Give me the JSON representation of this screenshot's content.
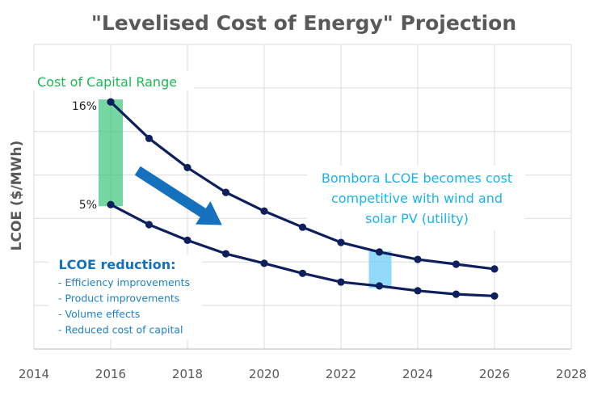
{
  "chart_data": {
    "type": "line",
    "title": "\"Levelised Cost of Energy\" Projection",
    "xlabel": "",
    "ylabel": "LCOE ($/MWh)",
    "xlim": [
      2014,
      2028
    ],
    "xticks": [
      2014,
      2016,
      2018,
      2020,
      2022,
      2024,
      2026,
      2028
    ],
    "ylim": [
      0,
      7
    ],
    "yticks_visible": false,
    "y_units_note": "relative scale (no y tick labels shown)",
    "grid": true,
    "legend": "none",
    "x": [
      2016,
      2017,
      2018,
      2019,
      2020,
      2021,
      2022,
      2023,
      2024,
      2025,
      2026
    ],
    "series": [
      {
        "name": "16% cost of capital",
        "color": "#0d1f5c",
        "values": [
          5.68,
          4.84,
          4.17,
          3.6,
          3.17,
          2.8,
          2.45,
          2.23,
          2.06,
          1.95,
          1.84
        ]
      },
      {
        "name": "5% cost of capital",
        "color": "#0d1f5c",
        "values": [
          3.32,
          2.86,
          2.5,
          2.19,
          1.97,
          1.74,
          1.54,
          1.45,
          1.34,
          1.26,
          1.22
        ]
      }
    ],
    "annotations": {
      "capital_range": {
        "label": "Cost of Capital Range",
        "x": 2016,
        "y_from": 3.32,
        "y_to": 5.68,
        "color": "#3cc47a"
      },
      "high_label": "16%",
      "low_label": "5%",
      "competitive_band": {
        "x": 2023,
        "y_from": 1.4,
        "y_to": 2.25,
        "color": "#6dcdf5",
        "lines": [
          "Bombora LCOE becomes cost",
          "competitive with wind and",
          "solar PV (utility)"
        ]
      },
      "reduction_arrow": {
        "from": [
          2016.7,
          4.1
        ],
        "to": [
          2018.9,
          2.85
        ],
        "color": "#1570be"
      },
      "reduction_box": {
        "heading": "LCOE reduction:",
        "items": [
          "- Efficiency improvements",
          "- Product improvements",
          "- Volume effects",
          "- Reduced cost of capital"
        ]
      }
    }
  }
}
